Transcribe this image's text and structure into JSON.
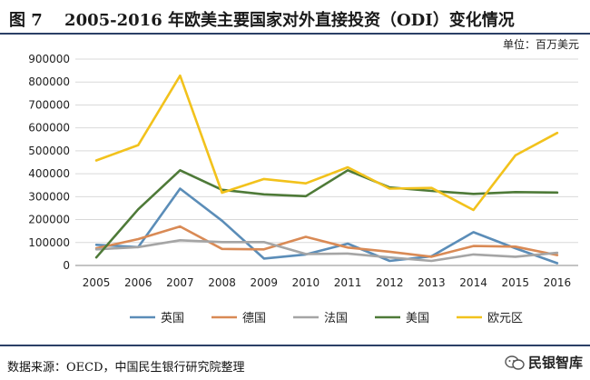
{
  "header": {
    "title": "图 7　 2005-2016 年欧美主要国家对外直接投资（ODI）变化情况",
    "unit": "单位：百万美元"
  },
  "footer": {
    "source": "数据来源：OECD，中国民生银行研究院整理",
    "brand": "民银智库"
  },
  "chart_data": {
    "type": "line",
    "categories": [
      "2005",
      "2006",
      "2007",
      "2008",
      "2009",
      "2010",
      "2011",
      "2012",
      "2013",
      "2014",
      "2015",
      "2016"
    ],
    "ylim": [
      0,
      900000
    ],
    "yticks": [
      "0",
      "100000",
      "200000",
      "300000",
      "400000",
      "500000",
      "600000",
      "700000",
      "800000",
      "900000"
    ],
    "grid": true,
    "legend_position": "bottom",
    "series": [
      {
        "name": "英国",
        "color": "#5b8db8",
        "values": [
          90000,
          80000,
          335000,
          195000,
          30000,
          48000,
          95000,
          20000,
          40000,
          145000,
          75000,
          10000
        ]
      },
      {
        "name": "德国",
        "color": "#d98a55",
        "values": [
          75000,
          115000,
          170000,
          72000,
          70000,
          125000,
          78000,
          60000,
          38000,
          85000,
          82000,
          45000
        ]
      },
      {
        "name": "法国",
        "color": "#a5a5a5",
        "values": [
          70000,
          80000,
          110000,
          102000,
          102000,
          50000,
          52000,
          35000,
          20000,
          48000,
          38000,
          55000
        ]
      },
      {
        "name": "美国",
        "color": "#4e7a38",
        "values": [
          35000,
          245000,
          415000,
          330000,
          310000,
          302000,
          415000,
          340000,
          325000,
          312000,
          320000,
          318000
        ]
      },
      {
        "name": "欧元区",
        "color": "#f2c21c",
        "values": [
          458000,
          525000,
          828000,
          317000,
          377000,
          358000,
          428000,
          335000,
          338000,
          242000,
          480000,
          578000
        ]
      }
    ]
  }
}
